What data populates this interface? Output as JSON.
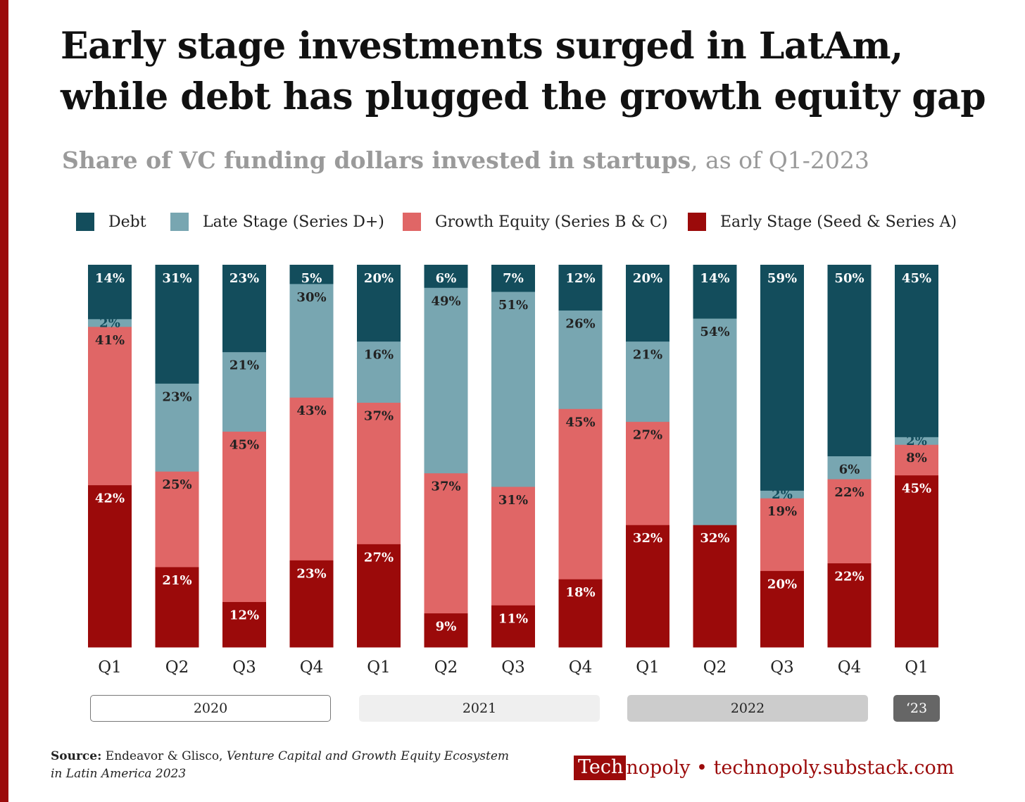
{
  "title_line1": "Early stage investments surged in LatAm,",
  "title_line2": "while debt has plugged the growth equity gap",
  "subtitle_bold": "Share of VC funding dollars invested in startups",
  "subtitle_rest": ", as of Q1-2023",
  "colors": {
    "debt": "#134d5c",
    "late": "#78a6b1",
    "growth": "#e06666",
    "early": "#9b0a0a"
  },
  "legend": [
    {
      "label": "Debt",
      "color": "#134d5c"
    },
    {
      "label": "Late Stage (Series D+)",
      "color": "#78a6b1"
    },
    {
      "label": "Growth Equity (Series B & C)",
      "color": "#e06666"
    },
    {
      "label": "Early Stage (Seed & Series A)",
      "color": "#9b0a0a"
    }
  ],
  "chart_data": {
    "type": "bar",
    "stacked": true,
    "categories": [
      "Q1",
      "Q2",
      "Q3",
      "Q4",
      "Q1",
      "Q2",
      "Q3",
      "Q4",
      "Q1",
      "Q2",
      "Q3",
      "Q4",
      "Q1"
    ],
    "series": [
      {
        "name": "Early Stage (Seed & Series A)",
        "values": [
          42,
          21,
          12,
          23,
          27,
          9,
          11,
          18,
          32,
          32,
          20,
          22,
          45
        ]
      },
      {
        "name": "Growth Equity (Series B & C)",
        "values": [
          41,
          25,
          45,
          43,
          37,
          37,
          31,
          45,
          27,
          0,
          19,
          22,
          8
        ]
      },
      {
        "name": "Late Stage (Series D+)",
        "values": [
          2,
          23,
          21,
          30,
          16,
          49,
          51,
          26,
          21,
          54,
          2,
          6,
          2
        ]
      },
      {
        "name": "Debt",
        "values": [
          14,
          31,
          23,
          5,
          20,
          6,
          7,
          12,
          20,
          14,
          59,
          50,
          45
        ]
      }
    ],
    "year_groups": [
      {
        "label": "2020",
        "quarters": 4
      },
      {
        "label": "2021",
        "quarters": 4
      },
      {
        "label": "2022",
        "quarters": 4
      },
      {
        "label": "‘23",
        "quarters": 1
      }
    ],
    "ylim": [
      0,
      100
    ],
    "unit": "%",
    "grid": false,
    "legend_position": "top"
  },
  "years": [
    {
      "label": "2020",
      "bg": "#ffffff",
      "border": "#777777",
      "color": "#222222"
    },
    {
      "label": "2021",
      "bg": "#efefef",
      "border": "#efefef",
      "color": "#222222"
    },
    {
      "label": "2022",
      "bg": "#cccccc",
      "border": "#cccccc",
      "color": "#222222"
    },
    {
      "label": "‘23",
      "bg": "#666666",
      "border": "#666666",
      "color": "#ffffff"
    }
  ],
  "source_label": "Source:",
  "source_text": " Endeavor & Glisco, ",
  "source_title_line1": "Venture Capital and Growth Equity Ecosystem",
  "source_title_line2": "in Latin America 2023",
  "brand_box": "Tech",
  "brand_rest": "nopoly • technopoly.substack.com"
}
